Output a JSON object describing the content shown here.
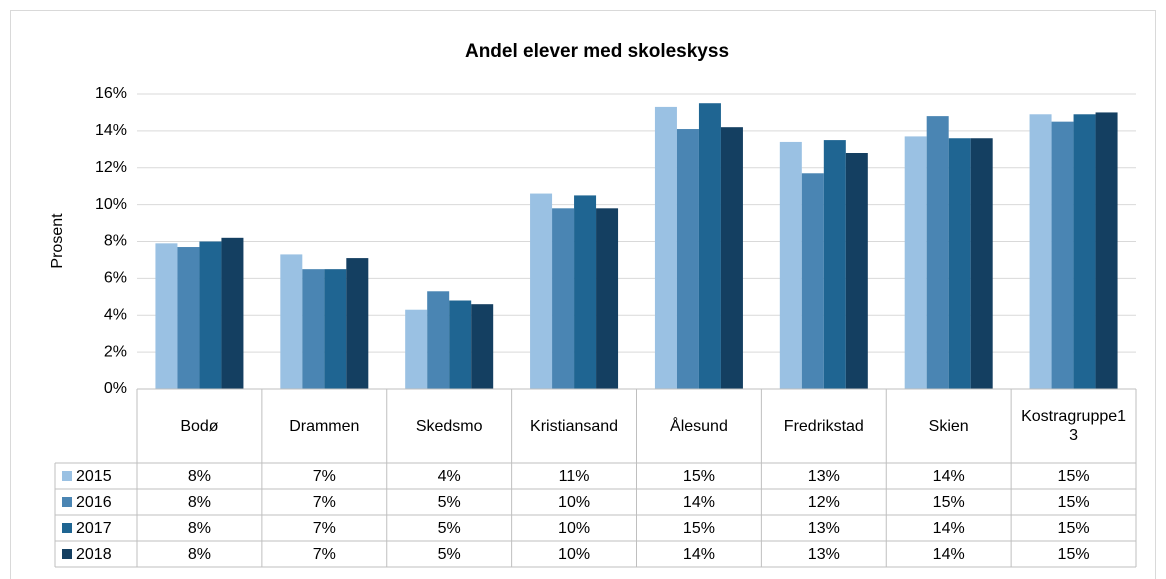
{
  "chart_data": {
    "type": "bar",
    "title": "Andel elever med skoleskyss",
    "y_label": "Prosent",
    "categories": [
      "Bodø",
      "Drammen",
      "Skedsmo",
      "Kristiansand",
      "Ålesund",
      "Fredrikstad",
      "Skien",
      "Kostragruppe13"
    ],
    "series": [
      {
        "name": "2015",
        "color": "#9ac1e3",
        "values": [
          7.9,
          7.3,
          4.3,
          10.6,
          15.3,
          13.4,
          13.7,
          14.9
        ],
        "value_labels": [
          "8%",
          "7%",
          "4%",
          "11%",
          "15%",
          "13%",
          "14%",
          "15%"
        ]
      },
      {
        "name": "2016",
        "color": "#4a85b3",
        "values": [
          7.7,
          6.5,
          5.3,
          9.8,
          14.1,
          11.7,
          14.8,
          14.5
        ],
        "value_labels": [
          "8%",
          "7%",
          "5%",
          "10%",
          "14%",
          "12%",
          "15%",
          "15%"
        ]
      },
      {
        "name": "2017",
        "color": "#1f6592",
        "values": [
          8.0,
          6.5,
          4.8,
          10.5,
          15.5,
          13.5,
          13.6,
          14.9
        ],
        "value_labels": [
          "8%",
          "7%",
          "5%",
          "10%",
          "15%",
          "13%",
          "14%",
          "15%"
        ]
      },
      {
        "name": "2018",
        "color": "#143f61",
        "values": [
          8.2,
          7.1,
          4.6,
          9.8,
          14.2,
          12.8,
          13.6,
          15.0
        ],
        "value_labels": [
          "8%",
          "7%",
          "5%",
          "10%",
          "14%",
          "13%",
          "14%",
          "15%"
        ]
      }
    ],
    "ylim": [
      0,
      16
    ],
    "yticks": [
      {
        "value": 0,
        "label": "0%"
      },
      {
        "value": 2,
        "label": "2%"
      },
      {
        "value": 4,
        "label": "4%"
      },
      {
        "value": 6,
        "label": "6%"
      },
      {
        "value": 8,
        "label": "8%"
      },
      {
        "value": 10,
        "label": "10%"
      },
      {
        "value": 12,
        "label": "12%"
      },
      {
        "value": 14,
        "label": "14%"
      },
      {
        "value": 16,
        "label": "16%"
      }
    ],
    "grid": true
  }
}
